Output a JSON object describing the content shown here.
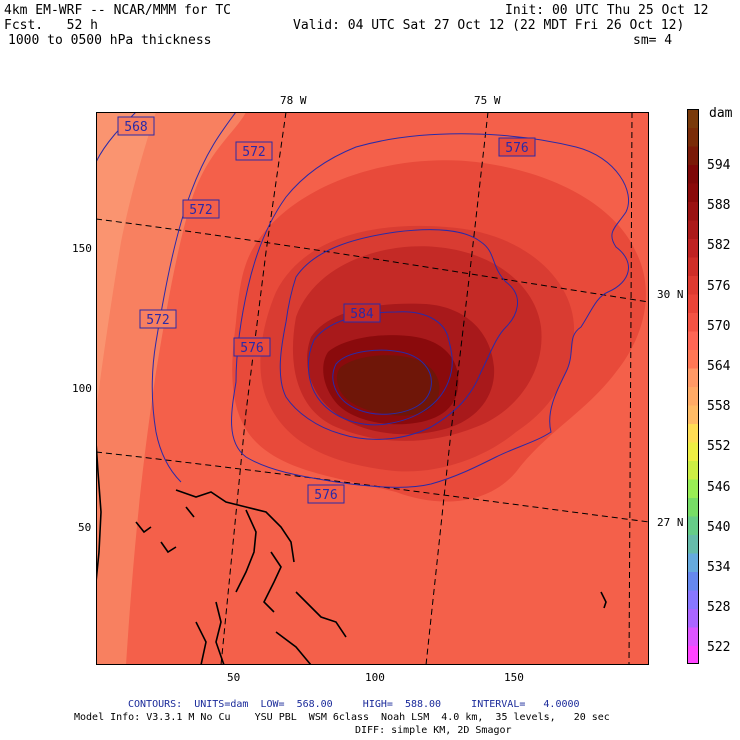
{
  "header": {
    "model_title": "4km EM-WRF -- NCAR/MMM for TC",
    "init": "Init: 00 UTC Thu 25 Oct 12",
    "forecast": "Fcst.   52 h",
    "valid": "Valid: 04 UTC Sat 27 Oct 12 (22 MDT Fri 26 Oct 12)",
    "field": "1000 to 0500 hPa thickness",
    "smoothing": "sm= 4"
  },
  "map": {
    "lon_labels": [
      "78 W",
      "75 W"
    ],
    "lat_labels": [
      "30 N",
      "27 N"
    ],
    "y_ticks": [
      "150",
      "100",
      "50"
    ],
    "x_ticks": [
      "50",
      "100",
      "150"
    ],
    "contour_labels": [
      "568",
      "572",
      "572",
      "572",
      "576",
      "576",
      "576",
      "584"
    ]
  },
  "colorbar": {
    "unit": "dam",
    "labels": [
      "594",
      "588",
      "582",
      "576",
      "570",
      "564",
      "558",
      "552",
      "546",
      "540",
      "534",
      "528",
      "522"
    ],
    "colors": [
      "#ff44ff",
      "#dd55ff",
      "#aa66ff",
      "#8877ff",
      "#6688ee",
      "#66aadd",
      "#66bbaa",
      "#66cc88",
      "#77dd66",
      "#99ee55",
      "#ccee44",
      "#eeee44",
      "#ffdd55",
      "#ffbb66",
      "#ffaa66",
      "#ff9966",
      "#ff7755",
      "#ff6655",
      "#f45344",
      "#ea4438",
      "#de3a30",
      "#cf2e28",
      "#bf2222",
      "#ac1a1a",
      "#9a1212",
      "#8a0a0a",
      "#7d0808",
      "#7a1a08",
      "#7a2c08",
      "#7a3a0a"
    ]
  },
  "footer": {
    "contours": "CONTOURS:  UNITS=dam  LOW=  568.00     HIGH=  588.00     INTERVAL=   4.0000",
    "model_info": "Model Info: V3.3.1 M No Cu    YSU PBL  WSM 6class  Noah LSM  4.0 km,  35 levels,   20 sec",
    "diff": "DIFF: simple KM, 2D Smagor"
  }
}
